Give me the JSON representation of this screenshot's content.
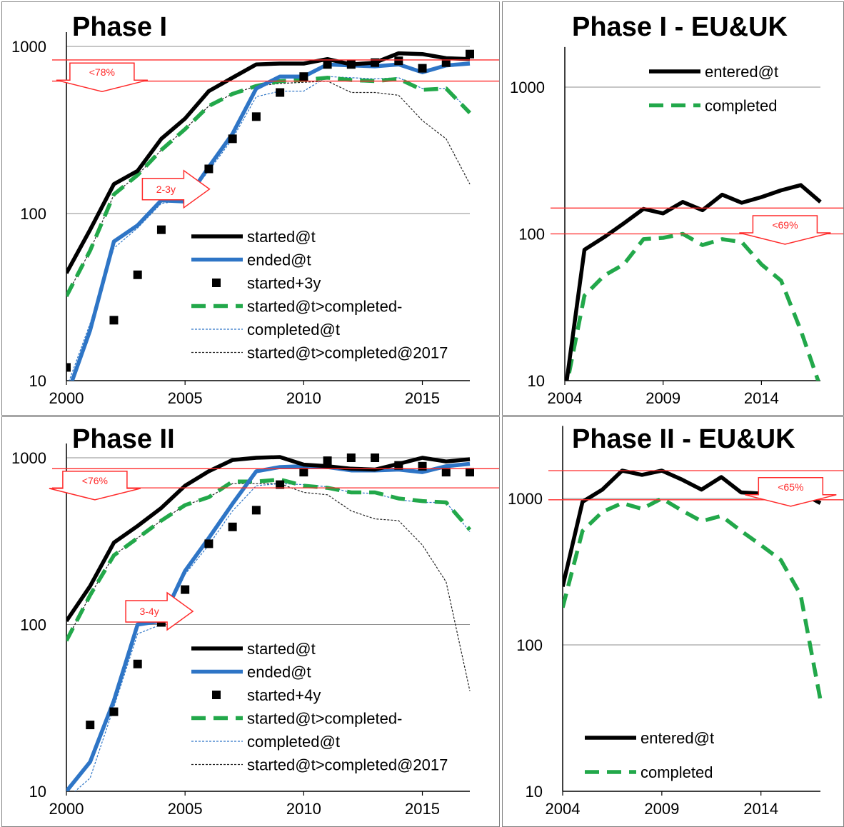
{
  "chart_data": [
    {
      "type": "line",
      "title": "Phase I",
      "yscale": "log",
      "ylim": [
        10,
        1000
      ],
      "xlim": [
        2000,
        2017
      ],
      "x_ticks": [
        2000,
        2005,
        2010,
        2015
      ],
      "y_ticks": [
        10,
        100,
        1000
      ],
      "x": [
        2000,
        2001,
        2002,
        2003,
        2004,
        2005,
        2006,
        2007,
        2008,
        2009,
        2010,
        2011,
        2012,
        2013,
        2014,
        2015,
        2016,
        2017
      ],
      "series": [
        {
          "name": "started@t",
          "style": "thick-black",
          "values": [
            44,
            80,
            150,
            180,
            280,
            370,
            540,
            650,
            780,
            790,
            790,
            840,
            780,
            800,
            910,
            900,
            850,
            840
          ]
        },
        {
          "name": "ended@t",
          "style": "thick-blue",
          "values": [
            8,
            20,
            68,
            85,
            120,
            118,
            190,
            300,
            560,
            660,
            660,
            780,
            770,
            760,
            780,
            700,
            770,
            790
          ]
        },
        {
          "name": "started+3y",
          "style": "markers",
          "x": [
            2000,
            2002,
            2003,
            2004,
            2005,
            2006,
            2007,
            2008,
            2009,
            2010,
            2011,
            2012,
            2013,
            2014,
            2015,
            2016,
            2017
          ],
          "values": [
            12,
            23,
            43,
            80,
            150,
            185,
            280,
            380,
            530,
            660,
            780,
            780,
            800,
            820,
            740,
            800,
            900
          ]
        },
        {
          "name": "started@t>completed-",
          "style": "dashed-green",
          "values": [
            32,
            60,
            130,
            170,
            240,
            320,
            440,
            520,
            580,
            620,
            630,
            650,
            630,
            620,
            640,
            550,
            560,
            400
          ]
        },
        {
          "name": "completed@t",
          "style": "thin-blue-dotted",
          "values": [
            9,
            22,
            62,
            82,
            115,
            120,
            180,
            280,
            500,
            540,
            540,
            660,
            650,
            640,
            650,
            560,
            560,
            410
          ]
        },
        {
          "name": "started@t>completed@2017",
          "style": "thin-black-dotted",
          "values": [
            32,
            60,
            130,
            170,
            240,
            320,
            440,
            520,
            580,
            600,
            610,
            620,
            530,
            530,
            510,
            360,
            280,
            150
          ]
        }
      ],
      "ref_lines": [
        830,
        620
      ],
      "annotations": [
        {
          "text": "<78%",
          "shape": "down-arrow",
          "x": 2001.5,
          "y": 700
        },
        {
          "text": "2-3y",
          "shape": "right-arrow",
          "x": 2003.2,
          "y": 140
        }
      ],
      "legend": "bottom-right"
    },
    {
      "type": "line",
      "title": "Phase I - EU&UK",
      "yscale": "log",
      "ylim": [
        10,
        1500
      ],
      "xlim": [
        2004,
        2017
      ],
      "x_ticks": [
        2004,
        2009,
        2014
      ],
      "y_ticks": [
        10,
        100,
        1000
      ],
      "x": [
        2004,
        2005,
        2006,
        2007,
        2008,
        2009,
        2010,
        2011,
        2012,
        2013,
        2014,
        2015,
        2016,
        2017
      ],
      "series": [
        {
          "name": "entered@t",
          "style": "thick-black",
          "values": [
            8,
            78,
            95,
            118,
            148,
            138,
            165,
            145,
            185,
            163,
            178,
            198,
            215,
            165
          ]
        },
        {
          "name": "completed",
          "style": "dashed-green",
          "values": [
            8,
            38,
            52,
            62,
            92,
            94,
            100,
            84,
            92,
            88,
            62,
            48,
            22,
            9
          ]
        }
      ],
      "ref_lines": [
        150,
        100
      ],
      "annotations": [
        {
          "text": "<69%",
          "shape": "down-arrow",
          "x": 2015.2,
          "y": 115
        }
      ],
      "legend": "top-right"
    },
    {
      "type": "line",
      "title": "Phase II",
      "yscale": "log",
      "ylim": [
        10,
        1000
      ],
      "xlim": [
        2000,
        2017
      ],
      "x_ticks": [
        2000,
        2005,
        2010,
        2015
      ],
      "y_ticks": [
        10,
        100,
        1000
      ],
      "x": [
        2000,
        2001,
        2002,
        2003,
        2004,
        2005,
        2006,
        2007,
        2008,
        2009,
        2010,
        2011,
        2012,
        2013,
        2014,
        2015,
        2016,
        2017
      ],
      "series": [
        {
          "name": "started@t",
          "style": "thick-black",
          "values": [
            105,
            170,
            310,
            390,
            500,
            680,
            830,
            970,
            1000,
            1010,
            910,
            890,
            860,
            850,
            920,
            1000,
            950,
            980
          ]
        },
        {
          "name": "ended@t",
          "style": "thick-blue",
          "values": [
            10,
            15,
            35,
            100,
            105,
            210,
            330,
            530,
            830,
            880,
            890,
            880,
            840,
            840,
            850,
            820,
            890,
            920
          ]
        },
        {
          "name": "started+4y",
          "style": "markers",
          "x": [
            2001,
            2002,
            2003,
            2004,
            2005,
            2006,
            2007,
            2008,
            2009,
            2010,
            2011,
            2012,
            2013,
            2014,
            2015,
            2016,
            2017
          ],
          "values": [
            25,
            30,
            58,
            103,
            162,
            305,
            385,
            485,
            690,
            820,
            960,
            1000,
            1000,
            900,
            890,
            820,
            820
          ]
        },
        {
          "name": "started@t>completed-",
          "style": "dashed-green",
          "values": [
            80,
            150,
            260,
            330,
            420,
            520,
            580,
            720,
            720,
            740,
            680,
            660,
            620,
            620,
            570,
            550,
            540,
            370
          ]
        },
        {
          "name": "completed@t",
          "style": "thin-blue-dotted",
          "values": [
            9,
            12,
            32,
            88,
            100,
            200,
            300,
            480,
            680,
            700,
            690,
            670,
            620,
            610,
            560,
            540,
            540,
            360
          ]
        },
        {
          "name": "started@t>completed@2017",
          "style": "thin-black-dotted",
          "values": [
            80,
            150,
            260,
            330,
            420,
            520,
            580,
            700,
            700,
            700,
            620,
            600,
            480,
            430,
            420,
            300,
            180,
            40
          ]
        }
      ],
      "ref_lines": [
        860,
        660
      ],
      "annotations": [
        {
          "text": "<76%",
          "shape": "down-arrow",
          "x": 2001.2,
          "y": 730
        },
        {
          "text": "3-4y",
          "shape": "right-arrow",
          "x": 2002.5,
          "y": 120
        }
      ],
      "legend": "bottom-right"
    },
    {
      "type": "line",
      "title": "Phase II - EU&UK",
      "yscale": "log",
      "ylim": [
        10,
        2500
      ],
      "xlim": [
        2004,
        2017
      ],
      "x_ticks": [
        2004,
        2009,
        2014
      ],
      "y_ticks": [
        10,
        100,
        1000
      ],
      "x": [
        2004,
        2005,
        2006,
        2007,
        2008,
        2009,
        2010,
        2011,
        2012,
        2013,
        2014,
        2015,
        2016,
        2017
      ],
      "series": [
        {
          "name": "entered@t",
          "style": "thick-black",
          "values": [
            250,
            950,
            1150,
            1550,
            1450,
            1550,
            1350,
            1150,
            1400,
            1100,
            1080,
            1180,
            1100,
            930
          ]
        },
        {
          "name": "completed",
          "style": "dashed-green",
          "values": [
            180,
            600,
            810,
            930,
            850,
            1000,
            830,
            700,
            760,
            600,
            480,
            380,
            220,
            42
          ]
        }
      ],
      "ref_lines": [
        1550,
        980
      ],
      "annotations": [
        {
          "text": "<65%",
          "shape": "down-arrow",
          "x": 2015.5,
          "y": 1200
        }
      ],
      "legend": "bottom-left"
    }
  ]
}
